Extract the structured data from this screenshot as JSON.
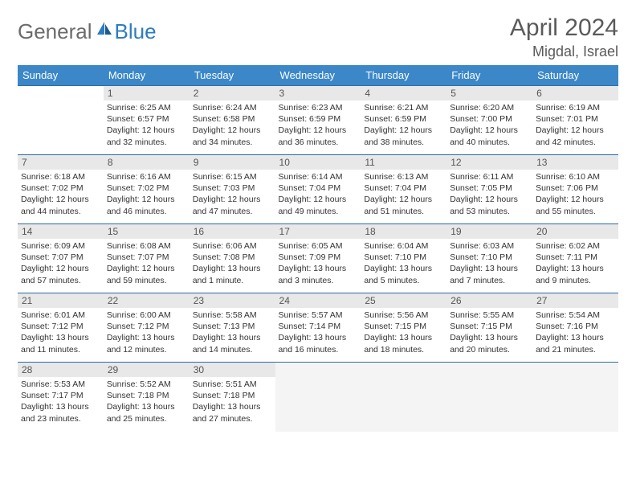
{
  "logo": {
    "general": "General",
    "blue": "Blue"
  },
  "title": "April 2024",
  "location": "Migdal, Israel",
  "headers": [
    "Sunday",
    "Monday",
    "Tuesday",
    "Wednesday",
    "Thursday",
    "Friday",
    "Saturday"
  ],
  "colors": {
    "header_bg": "#3b87c8",
    "header_text": "#ffffff",
    "border": "#2d6da3",
    "daynum_bg": "#e8e8e8",
    "text": "#333333",
    "logo_gray": "#6b6b6b",
    "logo_blue": "#2d7cc0"
  },
  "weeks": [
    [
      null,
      {
        "n": "1",
        "sr": "6:25 AM",
        "ss": "6:57 PM",
        "dl": "12 hours and 32 minutes."
      },
      {
        "n": "2",
        "sr": "6:24 AM",
        "ss": "6:58 PM",
        "dl": "12 hours and 34 minutes."
      },
      {
        "n": "3",
        "sr": "6:23 AM",
        "ss": "6:59 PM",
        "dl": "12 hours and 36 minutes."
      },
      {
        "n": "4",
        "sr": "6:21 AM",
        "ss": "6:59 PM",
        "dl": "12 hours and 38 minutes."
      },
      {
        "n": "5",
        "sr": "6:20 AM",
        "ss": "7:00 PM",
        "dl": "12 hours and 40 minutes."
      },
      {
        "n": "6",
        "sr": "6:19 AM",
        "ss": "7:01 PM",
        "dl": "12 hours and 42 minutes."
      }
    ],
    [
      {
        "n": "7",
        "sr": "6:18 AM",
        "ss": "7:02 PM",
        "dl": "12 hours and 44 minutes."
      },
      {
        "n": "8",
        "sr": "6:16 AM",
        "ss": "7:02 PM",
        "dl": "12 hours and 46 minutes."
      },
      {
        "n": "9",
        "sr": "6:15 AM",
        "ss": "7:03 PM",
        "dl": "12 hours and 47 minutes."
      },
      {
        "n": "10",
        "sr": "6:14 AM",
        "ss": "7:04 PM",
        "dl": "12 hours and 49 minutes."
      },
      {
        "n": "11",
        "sr": "6:13 AM",
        "ss": "7:04 PM",
        "dl": "12 hours and 51 minutes."
      },
      {
        "n": "12",
        "sr": "6:11 AM",
        "ss": "7:05 PM",
        "dl": "12 hours and 53 minutes."
      },
      {
        "n": "13",
        "sr": "6:10 AM",
        "ss": "7:06 PM",
        "dl": "12 hours and 55 minutes."
      }
    ],
    [
      {
        "n": "14",
        "sr": "6:09 AM",
        "ss": "7:07 PM",
        "dl": "12 hours and 57 minutes."
      },
      {
        "n": "15",
        "sr": "6:08 AM",
        "ss": "7:07 PM",
        "dl": "12 hours and 59 minutes."
      },
      {
        "n": "16",
        "sr": "6:06 AM",
        "ss": "7:08 PM",
        "dl": "13 hours and 1 minute."
      },
      {
        "n": "17",
        "sr": "6:05 AM",
        "ss": "7:09 PM",
        "dl": "13 hours and 3 minutes."
      },
      {
        "n": "18",
        "sr": "6:04 AM",
        "ss": "7:10 PM",
        "dl": "13 hours and 5 minutes."
      },
      {
        "n": "19",
        "sr": "6:03 AM",
        "ss": "7:10 PM",
        "dl": "13 hours and 7 minutes."
      },
      {
        "n": "20",
        "sr": "6:02 AM",
        "ss": "7:11 PM",
        "dl": "13 hours and 9 minutes."
      }
    ],
    [
      {
        "n": "21",
        "sr": "6:01 AM",
        "ss": "7:12 PM",
        "dl": "13 hours and 11 minutes."
      },
      {
        "n": "22",
        "sr": "6:00 AM",
        "ss": "7:12 PM",
        "dl": "13 hours and 12 minutes."
      },
      {
        "n": "23",
        "sr": "5:58 AM",
        "ss": "7:13 PM",
        "dl": "13 hours and 14 minutes."
      },
      {
        "n": "24",
        "sr": "5:57 AM",
        "ss": "7:14 PM",
        "dl": "13 hours and 16 minutes."
      },
      {
        "n": "25",
        "sr": "5:56 AM",
        "ss": "7:15 PM",
        "dl": "13 hours and 18 minutes."
      },
      {
        "n": "26",
        "sr": "5:55 AM",
        "ss": "7:15 PM",
        "dl": "13 hours and 20 minutes."
      },
      {
        "n": "27",
        "sr": "5:54 AM",
        "ss": "7:16 PM",
        "dl": "13 hours and 21 minutes."
      }
    ],
    [
      {
        "n": "28",
        "sr": "5:53 AM",
        "ss": "7:17 PM",
        "dl": "13 hours and 23 minutes."
      },
      {
        "n": "29",
        "sr": "5:52 AM",
        "ss": "7:18 PM",
        "dl": "13 hours and 25 minutes."
      },
      {
        "n": "30",
        "sr": "5:51 AM",
        "ss": "7:18 PM",
        "dl": "13 hours and 27 minutes."
      },
      "trail",
      "trail",
      "trail",
      "trail"
    ]
  ],
  "labels": {
    "sunrise": "Sunrise:",
    "sunset": "Sunset:",
    "daylight": "Daylight:"
  }
}
